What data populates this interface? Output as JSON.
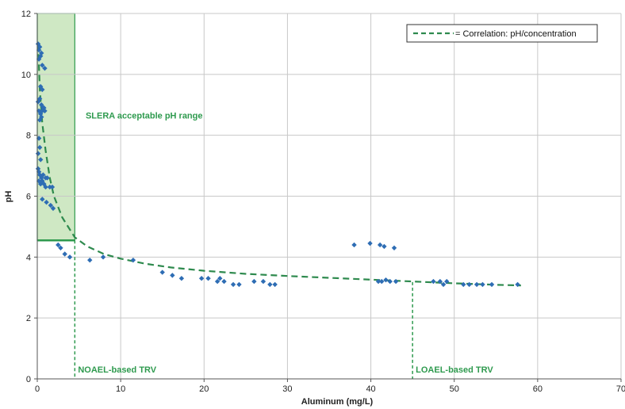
{
  "chart_data": {
    "type": "scatter",
    "xlabel": "Aluminum (mg/L)",
    "ylabel": "pH",
    "xlim": [
      0,
      70
    ],
    "ylim": [
      0,
      12
    ],
    "x_ticks": [
      0,
      10,
      20,
      30,
      40,
      50,
      60,
      70
    ],
    "y_ticks": [
      0,
      2,
      4,
      6,
      8,
      10,
      12
    ],
    "grid": true,
    "legend": {
      "placement": "top-right",
      "entries": [
        "= Correlation: pH/concentration"
      ]
    },
    "colors": {
      "points": "#2e6db4",
      "annotation": "#2e9a4e",
      "region_fill": "#cfe8c4",
      "curve": "#2e8a4e"
    },
    "acceptable_region": {
      "label": "SLERA acceptable pH range",
      "x": [
        0,
        4.5
      ],
      "y": [
        4.55,
        12
      ]
    },
    "reference_lines": [
      {
        "label": "NOAEL-based TRV",
        "x": 4.5,
        "y_top": 4.55
      },
      {
        "label": "LOAEL-based TRV",
        "x": 45,
        "y_top": 3.18
      }
    ],
    "correlation_curve": [
      [
        0.1,
        11.0
      ],
      [
        0.3,
        9.5
      ],
      [
        0.6,
        8.4
      ],
      [
        1,
        7.5
      ],
      [
        1.5,
        6.6
      ],
      [
        2,
        6.0
      ],
      [
        3,
        5.3
      ],
      [
        4.5,
        4.65
      ],
      [
        6,
        4.35
      ],
      [
        8,
        4.1
      ],
      [
        10,
        3.95
      ],
      [
        13,
        3.78
      ],
      [
        16,
        3.66
      ],
      [
        20,
        3.55
      ],
      [
        25,
        3.45
      ],
      [
        30,
        3.38
      ],
      [
        35,
        3.32
      ],
      [
        40,
        3.26
      ],
      [
        45,
        3.2
      ],
      [
        50,
        3.14
      ],
      [
        55,
        3.09
      ],
      [
        58,
        3.07
      ]
    ],
    "series": [
      {
        "name": "",
        "points": [
          [
            0.1,
            11.0
          ],
          [
            0.2,
            10.8
          ],
          [
            0.3,
            10.9
          ],
          [
            0.2,
            10.5
          ],
          [
            0.4,
            10.6
          ],
          [
            0.5,
            10.7
          ],
          [
            0.6,
            10.3
          ],
          [
            0.9,
            10.2
          ],
          [
            0.4,
            9.6
          ],
          [
            0.6,
            9.5
          ],
          [
            0.1,
            9.1
          ],
          [
            0.3,
            9.2
          ],
          [
            0.5,
            9.0
          ],
          [
            0.7,
            8.9
          ],
          [
            0.2,
            8.8
          ],
          [
            0.4,
            8.7
          ],
          [
            0.6,
            8.8
          ],
          [
            0.8,
            8.9
          ],
          [
            0.3,
            8.5
          ],
          [
            0.5,
            8.6
          ],
          [
            0.9,
            8.8
          ],
          [
            0.2,
            7.9
          ],
          [
            0.3,
            7.6
          ],
          [
            0.1,
            7.4
          ],
          [
            0.4,
            7.2
          ],
          [
            0.1,
            6.9
          ],
          [
            0.2,
            6.8
          ],
          [
            0.3,
            6.7
          ],
          [
            0.5,
            6.6
          ],
          [
            0.7,
            6.7
          ],
          [
            1.0,
            6.6
          ],
          [
            1.2,
            6.6
          ],
          [
            0.2,
            6.5
          ],
          [
            0.4,
            6.4
          ],
          [
            0.6,
            6.5
          ],
          [
            0.8,
            6.4
          ],
          [
            1.0,
            6.3
          ],
          [
            1.5,
            6.3
          ],
          [
            1.8,
            6.3
          ],
          [
            0.6,
            5.9
          ],
          [
            1.1,
            5.8
          ],
          [
            1.6,
            5.7
          ],
          [
            1.9,
            5.6
          ],
          [
            2.5,
            4.4
          ],
          [
            2.8,
            4.3
          ],
          [
            3.3,
            4.1
          ],
          [
            3.9,
            4.0
          ],
          [
            6.3,
            3.9
          ],
          [
            7.9,
            4.0
          ],
          [
            11.5,
            3.9
          ],
          [
            15.0,
            3.5
          ],
          [
            16.2,
            3.4
          ],
          [
            17.3,
            3.3
          ],
          [
            19.7,
            3.3
          ],
          [
            20.5,
            3.3
          ],
          [
            21.6,
            3.2
          ],
          [
            21.9,
            3.3
          ],
          [
            22.4,
            3.2
          ],
          [
            23.5,
            3.1
          ],
          [
            24.2,
            3.1
          ],
          [
            26.0,
            3.2
          ],
          [
            27.1,
            3.2
          ],
          [
            27.9,
            3.1
          ],
          [
            28.5,
            3.1
          ],
          [
            38.0,
            4.4
          ],
          [
            39.9,
            4.45
          ],
          [
            41.1,
            4.4
          ],
          [
            41.6,
            4.35
          ],
          [
            42.8,
            4.3
          ],
          [
            40.9,
            3.2
          ],
          [
            41.3,
            3.2
          ],
          [
            41.8,
            3.25
          ],
          [
            42.3,
            3.2
          ],
          [
            43.0,
            3.2
          ],
          [
            47.5,
            3.2
          ],
          [
            48.3,
            3.2
          ],
          [
            48.7,
            3.1
          ],
          [
            49.1,
            3.2
          ],
          [
            51.1,
            3.1
          ],
          [
            51.8,
            3.1
          ],
          [
            52.7,
            3.1
          ],
          [
            53.4,
            3.1
          ],
          [
            54.5,
            3.1
          ],
          [
            57.6,
            3.1
          ]
        ]
      }
    ]
  }
}
